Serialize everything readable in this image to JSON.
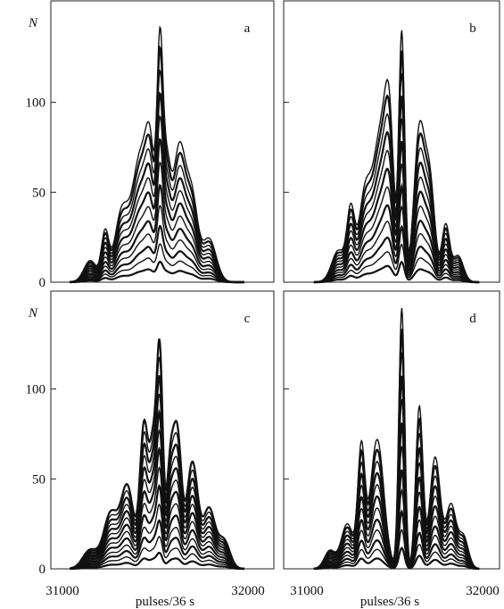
{
  "figure": {
    "ylabel": "N",
    "xlabel": "pulses/36 s",
    "x_ticks": [
      "31000",
      "32000"
    ]
  },
  "chart_data": [
    {
      "type": "line",
      "panel": "a",
      "ylim": [
        0,
        145
      ],
      "ylabel": "N",
      "y_ticks": [
        "0",
        "50",
        "100"
      ],
      "peaks": [
        {
          "x": 31150,
          "h": 15,
          "w": 34
        },
        {
          "x": 31230,
          "h": 33,
          "w": 20
        },
        {
          "x": 31320,
          "h": 48,
          "w": 38
        },
        {
          "x": 31420,
          "h": 85,
          "w": 42
        },
        {
          "x": 31475,
          "h": 68,
          "w": 25
        },
        {
          "x": 31525,
          "h": 142,
          "w": 16
        },
        {
          "x": 31560,
          "h": 72,
          "w": 22
        },
        {
          "x": 31630,
          "h": 93,
          "w": 35
        },
        {
          "x": 31700,
          "h": 52,
          "w": 30
        },
        {
          "x": 31790,
          "h": 30,
          "w": 38
        }
      ],
      "levels": [
        0.08,
        0.15,
        0.22,
        0.3,
        0.38,
        0.47,
        0.56,
        0.65,
        0.74,
        0.83,
        0.92,
        1.0
      ]
    },
    {
      "type": "line",
      "panel": "b",
      "ylim": [
        0,
        145
      ],
      "y_ticks": [
        "",
        "",
        ""
      ],
      "peaks": [
        {
          "x": 31180,
          "h": 18,
          "w": 38
        },
        {
          "x": 31250,
          "h": 38,
          "w": 22
        },
        {
          "x": 31330,
          "h": 48,
          "w": 35
        },
        {
          "x": 31420,
          "h": 82,
          "w": 42
        },
        {
          "x": 31470,
          "h": 68,
          "w": 25
        },
        {
          "x": 31540,
          "h": 140,
          "w": 16
        },
        {
          "x": 31640,
          "h": 85,
          "w": 30
        },
        {
          "x": 31700,
          "h": 55,
          "w": 28
        },
        {
          "x": 31790,
          "h": 32,
          "w": 22
        },
        {
          "x": 31860,
          "h": 15,
          "w": 30
        }
      ],
      "levels": [
        0.08,
        0.15,
        0.22,
        0.3,
        0.38,
        0.47,
        0.56,
        0.65,
        0.74,
        0.83,
        0.92,
        1.0
      ]
    },
    {
      "type": "line",
      "panel": "c",
      "ylim": [
        0,
        145
      ],
      "ylabel": "N",
      "y_ticks": [
        "0",
        "50",
        "100"
      ],
      "peaks": [
        {
          "x": 31150,
          "h": 12,
          "w": 40
        },
        {
          "x": 31260,
          "h": 35,
          "w": 38
        },
        {
          "x": 31350,
          "h": 52,
          "w": 35
        },
        {
          "x": 31440,
          "h": 90,
          "w": 22
        },
        {
          "x": 31490,
          "h": 75,
          "w": 20
        },
        {
          "x": 31525,
          "h": 128,
          "w": 16
        },
        {
          "x": 31580,
          "h": 62,
          "w": 20
        },
        {
          "x": 31620,
          "h": 82,
          "w": 22
        },
        {
          "x": 31700,
          "h": 68,
          "w": 30
        },
        {
          "x": 31790,
          "h": 38,
          "w": 32
        },
        {
          "x": 31870,
          "h": 18,
          "w": 32
        }
      ],
      "levels": [
        0.07,
        0.14,
        0.21,
        0.28,
        0.36,
        0.44,
        0.52,
        0.6,
        0.68,
        0.76,
        0.84,
        0.92,
        1.0
      ]
    },
    {
      "type": "line",
      "panel": "d",
      "ylim": [
        0,
        145
      ],
      "y_ticks": [
        "",
        "",
        ""
      ],
      "peaks": [
        {
          "x": 31130,
          "h": 10,
          "w": 30
        },
        {
          "x": 31230,
          "h": 25,
          "w": 35
        },
        {
          "x": 31310,
          "h": 65,
          "w": 20
        },
        {
          "x": 31400,
          "h": 72,
          "w": 38
        },
        {
          "x": 31540,
          "h": 145,
          "w": 16
        },
        {
          "x": 31640,
          "h": 90,
          "w": 20
        },
        {
          "x": 31730,
          "h": 62,
          "w": 30
        },
        {
          "x": 31820,
          "h": 35,
          "w": 28
        },
        {
          "x": 31890,
          "h": 18,
          "w": 28
        }
      ],
      "levels": [
        0.08,
        0.15,
        0.22,
        0.3,
        0.38,
        0.47,
        0.56,
        0.65,
        0.74,
        0.83,
        0.92,
        1.0
      ]
    }
  ]
}
